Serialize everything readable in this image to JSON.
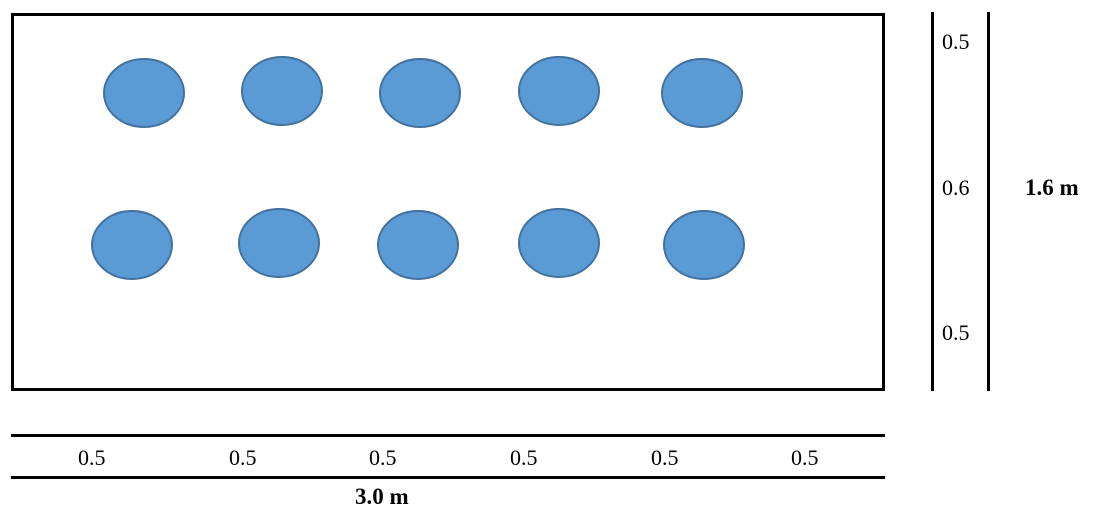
{
  "plot": {
    "rows": 2,
    "plants_per_row": 5
  },
  "colors": {
    "plant_fill": "#5b9bd5",
    "plant_stroke": "#41719c",
    "line": "#000000"
  },
  "vertical_dims": {
    "segments": [
      "0.5",
      "0.6",
      "0.5"
    ],
    "total": "1.6 m"
  },
  "horizontal_dims": {
    "segments": [
      "0.5",
      "0.5",
      "0.5",
      "0.5",
      "0.5",
      "0.5"
    ],
    "total": "3.0 m"
  }
}
